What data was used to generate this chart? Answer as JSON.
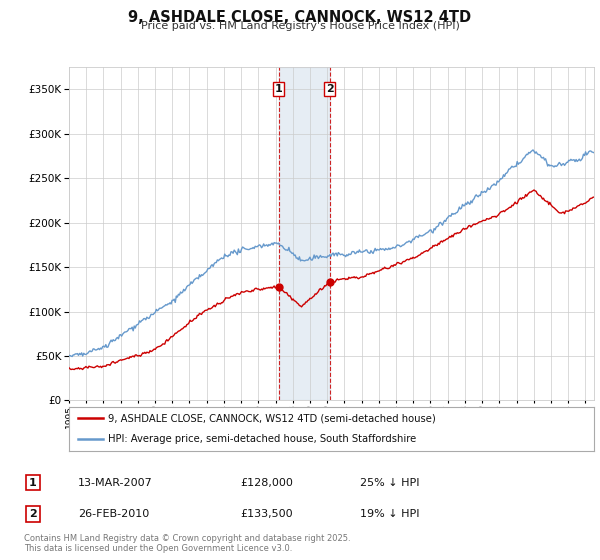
{
  "title": "9, ASHDALE CLOSE, CANNOCK, WS12 4TD",
  "subtitle": "Price paid vs. HM Land Registry's House Price Index (HPI)",
  "ylim": [
    0,
    375000
  ],
  "yticks": [
    0,
    50000,
    100000,
    150000,
    200000,
    250000,
    300000,
    350000
  ],
  "background_color": "#ffffff",
  "grid_color": "#cccccc",
  "hpi_color": "#6699cc",
  "price_color": "#cc0000",
  "sale1_date": "13-MAR-2007",
  "sale1_price": 128000,
  "sale1_pct": "25% ↓ HPI",
  "sale2_date": "26-FEB-2010",
  "sale2_price": 133500,
  "sale2_pct": "19% ↓ HPI",
  "legend_label1": "9, ASHDALE CLOSE, CANNOCK, WS12 4TD (semi-detached house)",
  "legend_label2": "HPI: Average price, semi-detached house, South Staffordshire",
  "footnote": "Contains HM Land Registry data © Crown copyright and database right 2025.\nThis data is licensed under the Open Government Licence v3.0.",
  "shade_color": "#c8d8e8",
  "sale1_yr": 2007.19,
  "sale2_yr": 2010.15,
  "xmin": 1995,
  "xmax": 2025.5
}
